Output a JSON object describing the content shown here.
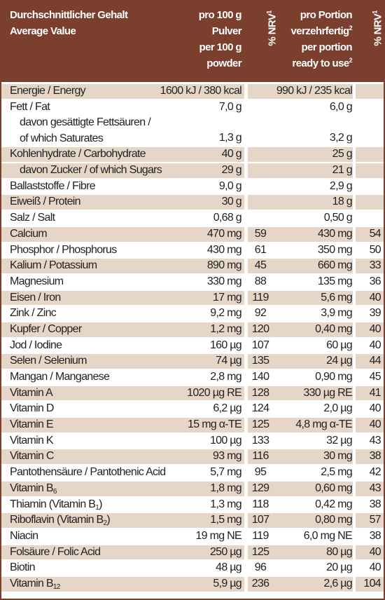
{
  "header": {
    "name_line1": "Durchschnittlicher Gehalt",
    "name_line2": "Average Value",
    "per100_line1": "pro 100 g",
    "per100_line2": "Pulver",
    "per100_line3": "per 100 g",
    "per100_line4": "powder",
    "nrv": "% NRV",
    "nrv_sup": "1",
    "portion_line1": "pro Portion",
    "portion_line2": "verzehrfertig",
    "portion_line2_sup": "2",
    "portion_line3": "per portion",
    "portion_line4": "ready to use",
    "portion_line4_sup": "2"
  },
  "rows": [
    {
      "name": "Energie / Energy",
      "per100": "1600 kJ / 380 kcal",
      "nrv100": "",
      "portion": "990 kJ / 235 kcal",
      "nrvp": "",
      "shaded": true
    },
    {
      "name": "Fett / Fat",
      "per100": "7,0 g",
      "nrv100": "",
      "portion": "6,0 g",
      "nrvp": "",
      "shaded": false
    },
    {
      "name": "davon gesättigte Fettsäuren /",
      "name2": "of which Saturates",
      "per100": "1,3 g",
      "nrv100": "",
      "portion": "3,2 g",
      "nrvp": "",
      "shaded": false,
      "tall": true
    },
    {
      "name": "Kohlenhydrate / Carbohydrate",
      "per100": "40 g",
      "nrv100": "",
      "portion": "25 g",
      "nrvp": "",
      "shaded": true
    },
    {
      "name": "davon Zucker / of which Sugars",
      "per100": "29 g",
      "nrv100": "",
      "portion": "21 g",
      "nrvp": "",
      "shaded": true,
      "indent": true
    },
    {
      "name": "Ballaststoffe / Fibre",
      "per100": "9,0 g",
      "nrv100": "",
      "portion": "2,9 g",
      "nrvp": "",
      "shaded": false
    },
    {
      "name": "Eiweiß / Protein",
      "per100": "30 g",
      "nrv100": "",
      "portion": "18 g",
      "nrvp": "",
      "shaded": true
    },
    {
      "name": "Salz / Salt",
      "per100": "0,68 g",
      "nrv100": "",
      "portion": "0,50 g",
      "nrvp": "",
      "shaded": false
    },
    {
      "name": "Calcium",
      "per100": "470 mg",
      "nrv100": "59",
      "portion": "430 mg",
      "nrvp": "54",
      "shaded": true
    },
    {
      "name": "Phosphor / Phosphorus",
      "per100": "430 mg",
      "nrv100": "61",
      "portion": "350 mg",
      "nrvp": "50",
      "shaded": false
    },
    {
      "name": "Kalium / Potassium",
      "per100": "890 mg",
      "nrv100": "45",
      "portion": "660 mg",
      "nrvp": "33",
      "shaded": true
    },
    {
      "name": "Magnesium",
      "per100": "330 mg",
      "nrv100": "88",
      "portion": "135 mg",
      "nrvp": "36",
      "shaded": false
    },
    {
      "name": "Eisen / Iron",
      "per100": "17 mg",
      "nrv100": "119",
      "portion": "5,6 mg",
      "nrvp": "40",
      "shaded": true
    },
    {
      "name": "Zink / Zinc",
      "per100": "9,2 mg",
      "nrv100": "92",
      "portion": "3,9 mg",
      "nrvp": "39",
      "shaded": false
    },
    {
      "name": "Kupfer / Copper",
      "per100": "1,2 mg",
      "nrv100": "120",
      "portion": "0,40 mg",
      "nrvp": "40",
      "shaded": true
    },
    {
      "name": "Jod / Iodine",
      "per100": "160 µg",
      "nrv100": "107",
      "portion": "60 µg",
      "nrvp": "40",
      "shaded": false
    },
    {
      "name": "Selen / Selenium",
      "per100": "74 µg",
      "nrv100": "135",
      "portion": "24 µg",
      "nrvp": "44",
      "shaded": true
    },
    {
      "name": "Mangan / Manganese",
      "per100": "2,8 mg",
      "nrv100": "140",
      "portion": "0,90 mg",
      "nrvp": "45",
      "shaded": false
    },
    {
      "name": "Vitamin A",
      "per100": "1020 µg RE",
      "nrv100": "128",
      "portion": "330 µg RE",
      "nrvp": "41",
      "shaded": true
    },
    {
      "name": "Vitamin D",
      "per100": "6,2 µg",
      "nrv100": "124",
      "portion": "2,0 µg",
      "nrvp": "40",
      "shaded": false
    },
    {
      "name": "Vitamin E",
      "per100": "15 mg α-TE",
      "nrv100": "125",
      "portion": "4,8 mg α-TE",
      "nrvp": "40",
      "shaded": true
    },
    {
      "name": "Vitamin K",
      "per100": "100 µg",
      "nrv100": "133",
      "portion": "32 µg",
      "nrvp": "43",
      "shaded": false
    },
    {
      "name": "Vitamin C",
      "per100": "93 mg",
      "nrv100": "116",
      "portion": "30 mg",
      "nrvp": "38",
      "shaded": true
    },
    {
      "name": "Pantothensäure / Pantothenic Acid",
      "per100": "5,7 mg",
      "nrv100": "95",
      "portion": "2,5 mg",
      "nrvp": "42",
      "shaded": false
    },
    {
      "name": "Vitamin B",
      "sub": "6",
      "per100": "1,8 mg",
      "nrv100": "129",
      "portion": "0,60 mg",
      "nrvp": "43",
      "shaded": true
    },
    {
      "name": "Thiamin (Vitamin B",
      "sub": "1",
      "after": ")",
      "per100": "1,3 mg",
      "nrv100": "118",
      "portion": "0,42 mg",
      "nrvp": "38",
      "shaded": false
    },
    {
      "name": "Riboflavin (Vitamin B",
      "sub": "2",
      "after": ")",
      "per100": "1,5 mg",
      "nrv100": "107",
      "portion": "0,80 mg",
      "nrvp": "57",
      "shaded": true
    },
    {
      "name": "Niacin",
      "per100": "19 mg NE",
      "nrv100": "119",
      "portion": "6,0 mg NE",
      "nrvp": "38",
      "shaded": false
    },
    {
      "name": "Folsäure / Folic Acid",
      "per100": "250 µg",
      "nrv100": "125",
      "portion": "80 µg",
      "nrvp": "40",
      "shaded": true
    },
    {
      "name": "Biotin",
      "per100": "48 µg",
      "nrv100": "96",
      "portion": "20 µg",
      "nrvp": "40",
      "shaded": false
    },
    {
      "name": "Vitamin B",
      "sub": "12",
      "per100": "5,9 µg",
      "nrv100": "236",
      "portion": "2,6 µg",
      "nrvp": "104",
      "shaded": true
    }
  ]
}
